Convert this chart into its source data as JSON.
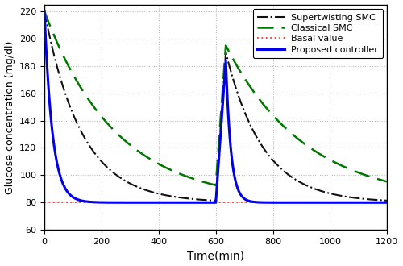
{
  "title": "",
  "xlabel": "Time(min)",
  "ylabel": "Glucose concentration (mg/dl)",
  "xlim": [
    0,
    1200
  ],
  "ylim": [
    60,
    225
  ],
  "yticks": [
    60,
    80,
    100,
    120,
    140,
    160,
    180,
    200,
    220
  ],
  "xticks": [
    0,
    200,
    400,
    600,
    800,
    1000,
    1200
  ],
  "basal_value": 80,
  "initial_glucose": 220,
  "background_color": "#ffffff",
  "grid_color": "#bbbbbb",
  "proposed_color": "#0000ee",
  "supertwisting_color": "#111111",
  "classical_color": "#007700",
  "basal_color": "#ff3333",
  "proposed_tau1": 28,
  "proposed_flat_start": 130,
  "proposed_meal_start": 600,
  "proposed_peak_time": 635,
  "proposed_peak_val": 184,
  "proposed_fall_tau": 18,
  "super_tau1": 130,
  "super_meal_rise_end": 635,
  "super_peak_val": 190,
  "super_fall_tau": 130,
  "classical_tau1": 250,
  "classical_meal_rise_end": 635,
  "classical_peak_val": 195,
  "classical_fall_tau": 280,
  "legend_fontsize": 8,
  "tick_fontsize": 8,
  "xlabel_fontsize": 10,
  "ylabel_fontsize": 9
}
